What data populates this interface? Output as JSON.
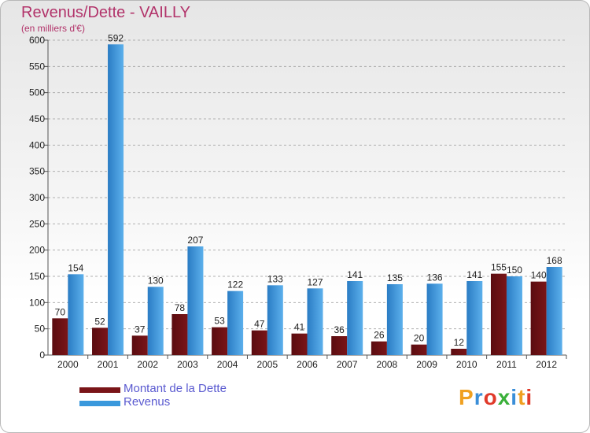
{
  "chart_data": {
    "type": "bar",
    "title": "Revenus/Dette - VAILLY",
    "subtitle": "(en milliers d'€)",
    "categories": [
      "2000",
      "2001",
      "2002",
      "2003",
      "2004",
      "2005",
      "2006",
      "2007",
      "2008",
      "2009",
      "2010",
      "2011",
      "2012"
    ],
    "series": [
      {
        "name": "Montant de la Dette",
        "color": "#7a1518",
        "values": [
          70,
          52,
          37,
          78,
          53,
          47,
          41,
          36,
          26,
          20,
          12,
          155,
          140
        ]
      },
      {
        "name": "Revenus",
        "color": "#3a98dc",
        "values": [
          154,
          592,
          130,
          207,
          122,
          133,
          127,
          141,
          135,
          136,
          141,
          150,
          168
        ]
      }
    ],
    "ylim": [
      0,
      600
    ],
    "yticks": [
      0,
      50,
      100,
      150,
      200,
      250,
      300,
      350,
      400,
      450,
      500,
      550,
      600
    ],
    "grid": true,
    "legend_position": "bottom-left"
  },
  "logo": {
    "letters": [
      "P",
      "r",
      "o",
      "x",
      "i",
      "t",
      "i"
    ],
    "colors": [
      "#f0a020",
      "#3a8ed8",
      "#e03a2a",
      "#3ab03a",
      "#3a8ed8",
      "#f0a020",
      "#e03a2a"
    ]
  }
}
